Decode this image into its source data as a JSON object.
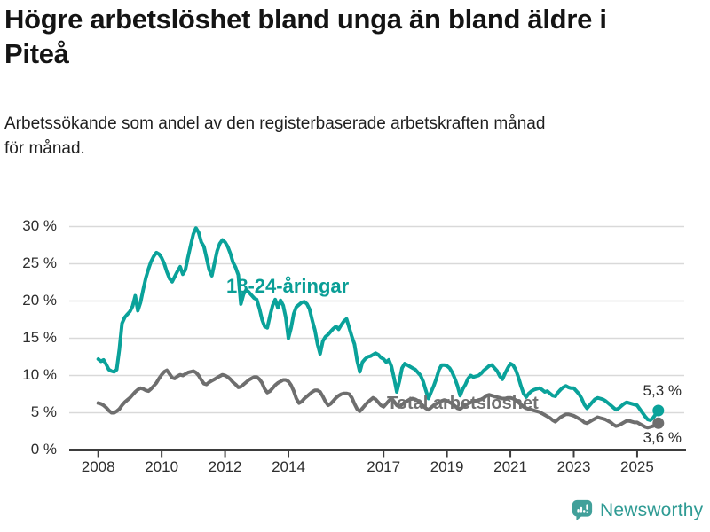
{
  "title": "Högre arbetslöshet bland unga än bland äldre i\nPiteå",
  "subtitle": "Arbetssökande som andel av den registerbaserade arbetskraften månad\nför månad.",
  "logo": {
    "text": "Newsworthy",
    "icon": "newsworthy-speech-bubble-bar-chart-icon",
    "color": "#2f9b94",
    "icon_color": "#41a09a"
  },
  "chart_data": {
    "type": "line",
    "title": "Högre arbetslöshet bland unga än bland äldre i Piteå",
    "xlabel": "",
    "ylabel": "",
    "ylim": [
      0,
      30
    ],
    "x_range": [
      2008.0,
      2025.75
    ],
    "grid": "horizontal",
    "legend_position": "inline-annotations",
    "x_unit": "months",
    "colors": {
      "grid": "#d9d9d9",
      "axis": "#3d3d3d",
      "tick_text": "#2e2e2e"
    },
    "yticks": [
      {
        "label": "0 %",
        "value": 0
      },
      {
        "label": "5 %",
        "value": 5
      },
      {
        "label": "10 %",
        "value": 10
      },
      {
        "label": "15 %",
        "value": 15
      },
      {
        "label": "20 %",
        "value": 20
      },
      {
        "label": "25 %",
        "value": 25
      },
      {
        "label": "30 %",
        "value": 30
      }
    ],
    "xticks": [
      {
        "label": "2008",
        "year": 2008
      },
      {
        "label": "2010",
        "year": 2010
      },
      {
        "label": "2012",
        "year": 2012
      },
      {
        "label": "2014",
        "year": 2014
      },
      {
        "label": "2017",
        "year": 2017
      },
      {
        "label": "2019",
        "year": 2019
      },
      {
        "label": "2021",
        "year": 2021
      },
      {
        "label": "2023",
        "year": 2023
      },
      {
        "label": "2025",
        "year": 2025
      }
    ],
    "series": [
      {
        "name": "18-24-åringar",
        "label": "18-24-åringar",
        "color": "#0aa29a",
        "end_label": "5,3 %",
        "end_value": 5.3,
        "start_year": 2008,
        "start_month": 1,
        "values": [
          12.2,
          11.9,
          12.1,
          11.5,
          10.8,
          10.6,
          10.5,
          10.8,
          13.5,
          17.0,
          17.8,
          18.2,
          18.6,
          19.3,
          20.7,
          18.7,
          19.8,
          21.5,
          23.1,
          24.3,
          25.3,
          26.0,
          26.5,
          26.3,
          25.8,
          25.0,
          23.9,
          23.0,
          22.6,
          23.3,
          24.0,
          24.6,
          23.6,
          24.2,
          25.9,
          27.5,
          29.0,
          29.8,
          29.2,
          27.9,
          27.3,
          25.8,
          24.2,
          23.4,
          25.1,
          26.7,
          27.7,
          28.2,
          27.9,
          27.3,
          26.4,
          25.2,
          24.5,
          23.5,
          19.6,
          20.9,
          21.5,
          21.2,
          20.8,
          20.4,
          20.2,
          19.0,
          17.5,
          16.6,
          16.4,
          18.0,
          19.4,
          20.2,
          19.1,
          20.1,
          19.4,
          17.8,
          15.0,
          16.4,
          18.3,
          19.2,
          19.5,
          19.8,
          19.9,
          19.6,
          18.9,
          17.4,
          16.1,
          14.2,
          12.9,
          14.6,
          15.2,
          15.5,
          15.9,
          16.3,
          16.6,
          16.2,
          16.8,
          17.3,
          17.6,
          16.4,
          15.2,
          14.2,
          12.0,
          10.5,
          11.8,
          12.2,
          12.5,
          12.6,
          12.8,
          13.0,
          12.8,
          12.4,
          12.2,
          11.8,
          12.1,
          11.2,
          9.6,
          7.8,
          9.2,
          11.0,
          11.6,
          11.4,
          11.2,
          11.0,
          10.8,
          10.4,
          10.0,
          9.2,
          8.0,
          6.9,
          7.8,
          8.6,
          9.6,
          10.8,
          11.4,
          11.4,
          11.3,
          11.0,
          10.4,
          9.6,
          8.6,
          7.3,
          8.2,
          8.8,
          9.6,
          10.0,
          9.8,
          9.9,
          10.0,
          10.3,
          10.7,
          11.0,
          11.3,
          11.4,
          11.0,
          10.6,
          9.9,
          9.5,
          10.3,
          11.0,
          11.6,
          11.4,
          10.8,
          9.8,
          8.6,
          7.6,
          7.1,
          7.6,
          7.9,
          8.1,
          8.2,
          8.3,
          8.1,
          7.8,
          7.9,
          7.6,
          7.3,
          7.2,
          7.7,
          8.1,
          8.4,
          8.6,
          8.4,
          8.3,
          8.3,
          7.9,
          7.5,
          6.9,
          6.1,
          5.6,
          6.0,
          6.4,
          6.8,
          7.0,
          6.9,
          6.8,
          6.6,
          6.3,
          6.0,
          5.7,
          5.4,
          5.6,
          5.9,
          6.2,
          6.4,
          6.3,
          6.2,
          6.1,
          6.0,
          5.5,
          5.0,
          4.5,
          4.1,
          4.0,
          4.3,
          4.8,
          5.3
        ]
      },
      {
        "name": "Total arbetslöshet",
        "label": "Total arbetslöshet",
        "color": "#6e6e6e",
        "end_label": "3,6 %",
        "end_value": 3.6,
        "start_year": 2008,
        "start_month": 1,
        "values": [
          6.3,
          6.2,
          6.0,
          5.7,
          5.3,
          5.0,
          5.0,
          5.2,
          5.5,
          6.0,
          6.4,
          6.7,
          7.0,
          7.4,
          7.8,
          8.1,
          8.3,
          8.2,
          8.0,
          7.9,
          8.2,
          8.6,
          9.0,
          9.6,
          10.1,
          10.5,
          10.7,
          10.2,
          9.7,
          9.6,
          9.9,
          10.1,
          10.0,
          10.2,
          10.4,
          10.5,
          10.6,
          10.4,
          10.0,
          9.4,
          8.9,
          8.8,
          9.1,
          9.3,
          9.5,
          9.7,
          9.9,
          10.1,
          10.0,
          9.8,
          9.5,
          9.1,
          8.8,
          8.4,
          8.5,
          8.8,
          9.1,
          9.4,
          9.6,
          9.8,
          9.8,
          9.5,
          9.0,
          8.2,
          7.7,
          7.9,
          8.3,
          8.7,
          9.0,
          9.2,
          9.4,
          9.4,
          9.2,
          8.7,
          7.9,
          6.9,
          6.3,
          6.5,
          6.9,
          7.2,
          7.5,
          7.8,
          8.0,
          8.0,
          7.8,
          7.2,
          6.5,
          6.0,
          6.2,
          6.6,
          7.0,
          7.3,
          7.5,
          7.6,
          7.6,
          7.5,
          7.0,
          6.2,
          5.5,
          5.2,
          5.6,
          6.0,
          6.4,
          6.7,
          7.0,
          6.8,
          6.4,
          6.0,
          5.8,
          6.2,
          6.6,
          6.9,
          6.5,
          6.0,
          5.8,
          6.1,
          6.4,
          6.6,
          6.8,
          6.9,
          6.8,
          6.6,
          6.3,
          5.9,
          5.6,
          5.4,
          5.7,
          6.0,
          6.2,
          6.4,
          6.6,
          6.7,
          6.6,
          6.4,
          6.2,
          5.9,
          5.6,
          5.5,
          5.8,
          6.0,
          6.2,
          6.4,
          6.5,
          6.6,
          6.7,
          6.8,
          7.0,
          7.3,
          7.4,
          7.3,
          7.2,
          7.1,
          7.0,
          6.9,
          6.9,
          7.0,
          7.0,
          6.9,
          6.7,
          6.4,
          6.1,
          5.8,
          5.6,
          5.5,
          5.4,
          5.3,
          5.2,
          5.1,
          4.9,
          4.7,
          4.5,
          4.3,
          4.0,
          3.8,
          4.1,
          4.4,
          4.6,
          4.8,
          4.8,
          4.7,
          4.6,
          4.4,
          4.2,
          4.0,
          3.7,
          3.6,
          3.8,
          4.0,
          4.2,
          4.4,
          4.3,
          4.2,
          4.1,
          3.9,
          3.7,
          3.4,
          3.2,
          3.3,
          3.5,
          3.7,
          3.9,
          3.9,
          3.8,
          3.7,
          3.7,
          3.5,
          3.3,
          3.1,
          3.0,
          3.1,
          3.2,
          3.4,
          3.6
        ]
      }
    ]
  }
}
